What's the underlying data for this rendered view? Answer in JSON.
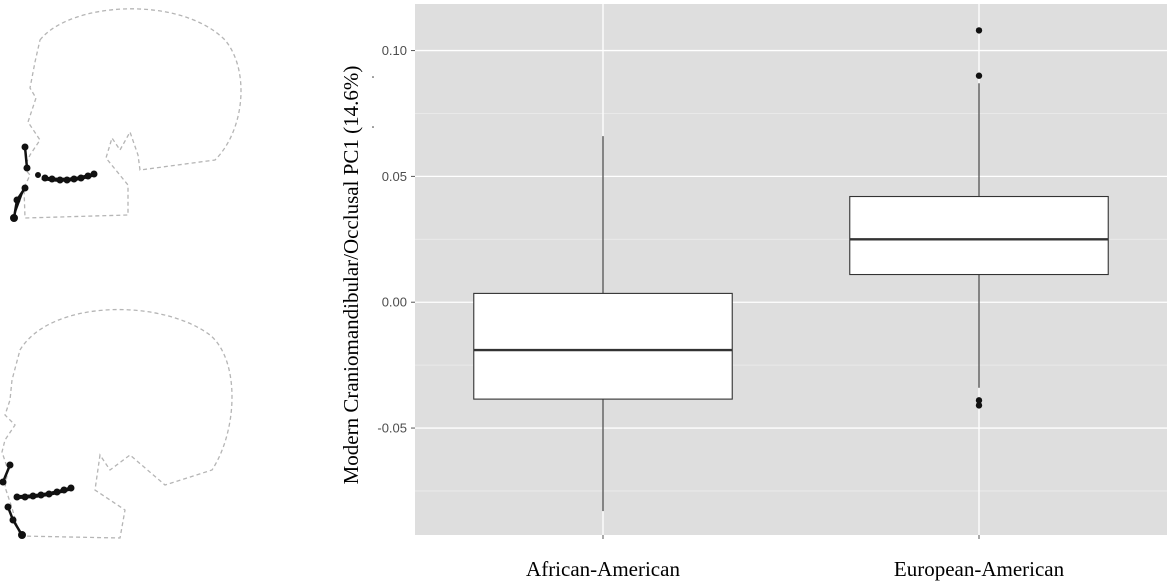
{
  "chart_data": {
    "type": "box",
    "ylabel": "Modern Craniomandibular/Occlusal PC1 (14.6%)",
    "xlabel": "",
    "ylim": [
      -0.0925,
      0.1185
    ],
    "yticks": [
      -0.05,
      0.0,
      0.05,
      0.1
    ],
    "ytick_labels": [
      "-0.05",
      "0.00",
      "0.05",
      "0.10"
    ],
    "grid": true,
    "background": "#dedede",
    "categories": [
      "African-American",
      "European-American"
    ],
    "boxes": [
      {
        "category": "African-American",
        "whisker_low": -0.083,
        "q1": -0.0385,
        "median": -0.019,
        "q3": 0.0035,
        "whisker_high": 0.066,
        "outliers": []
      },
      {
        "category": "European-American",
        "whisker_low": -0.034,
        "q1": 0.011,
        "median": 0.025,
        "q3": 0.042,
        "whisker_high": 0.087,
        "outliers": [
          0.108,
          0.09,
          -0.039,
          -0.041
        ]
      }
    ]
  },
  "skull_diagrams": [
    {
      "name": "upper-skull-diagram"
    },
    {
      "name": "lower-skull-diagram"
    }
  ]
}
